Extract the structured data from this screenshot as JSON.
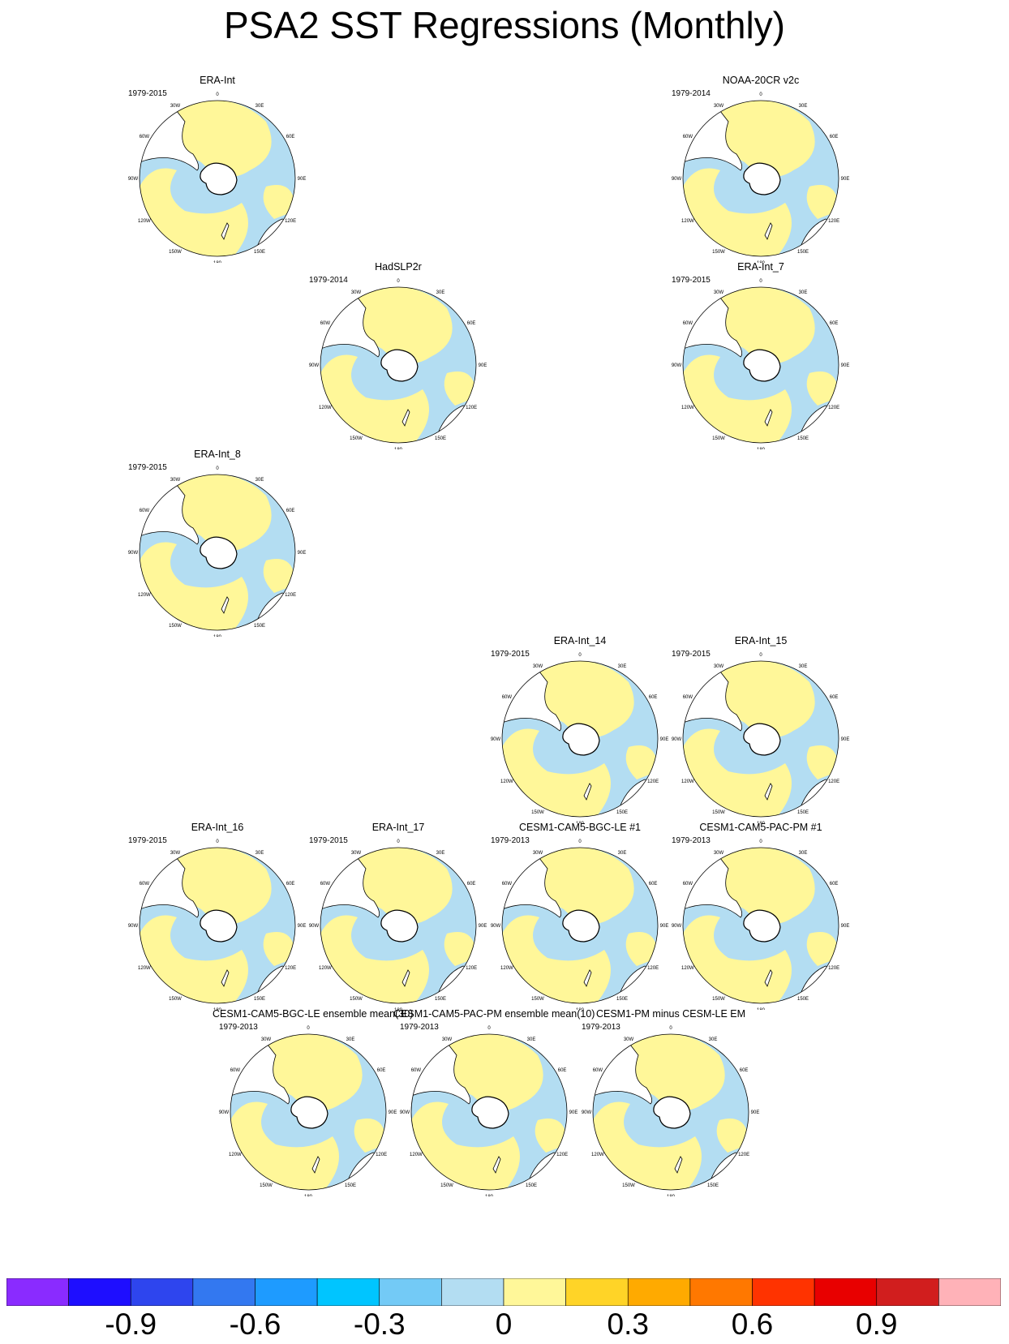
{
  "title": "PSA2 SST Regressions (Monthly)",
  "colors": {
    "ocean_positive": "#FFF799",
    "ocean_negative": "#B3DDF2",
    "land": "#ffffff",
    "coast": "#000000"
  },
  "map_labels": {
    "top": "0",
    "n30e": "30E",
    "n60e": "60E",
    "n90e": "90E",
    "n120e": "120E",
    "n150e": "150E",
    "bottom": "180",
    "n150w": "150W",
    "n120w": "120W",
    "n90w": "90W",
    "n60w": "60W",
    "n30w": "30W"
  },
  "panels": [
    {
      "id": "p1",
      "title": "ERA-Int",
      "period": "1979-2015"
    },
    {
      "id": "p2",
      "title": "NOAA-20CR v2c",
      "period": "1979-2014"
    },
    {
      "id": "p3",
      "title": "HadSLP2r",
      "period": "1979-2014"
    },
    {
      "id": "p4",
      "title": "ERA-Int_7",
      "period": "1979-2015"
    },
    {
      "id": "p5",
      "title": "ERA-Int_8",
      "period": "1979-2015"
    },
    {
      "id": "p6",
      "title": "ERA-Int_14",
      "period": "1979-2015"
    },
    {
      "id": "p7",
      "title": "ERA-Int_15",
      "period": "1979-2015"
    },
    {
      "id": "p8",
      "title": "ERA-Int_16",
      "period": "1979-2015"
    },
    {
      "id": "p9",
      "title": "ERA-Int_17",
      "period": "1979-2015"
    },
    {
      "id": "p10",
      "title": "CESM1-CAM5-BGC-LE #1",
      "period": "1979-2013"
    },
    {
      "id": "p11",
      "title": "CESM1-CAM5-PAC-PM #1",
      "period": "1979-2013"
    },
    {
      "id": "p12",
      "title": "CESM1-CAM5-BGC-LE ensemble mean(30)",
      "period": "1979-2013"
    },
    {
      "id": "p13",
      "title": "CESM1-CAM5-PAC-PM ensemble mean(10)",
      "period": "1979-2013"
    },
    {
      "id": "p14",
      "title": "CESM1-PM minus CESM-LE EM",
      "period": "1979-2013"
    }
  ],
  "colorbar": {
    "colors": [
      "#8A2BFF",
      "#1E0EFF",
      "#2E45EE",
      "#3378F0",
      "#1E9BFF",
      "#00C5FF",
      "#73CAF6",
      "#B3DDF2",
      "#FFF799",
      "#FFD427",
      "#FFAA00",
      "#FF7800",
      "#FF3300",
      "#E80000",
      "#D11E1E",
      "#FFB2B8"
    ],
    "tick_labels": [
      "-0.9",
      "-0.6",
      "-0.3",
      "0",
      "0.3",
      "0.6",
      "0.9"
    ],
    "tick_values": [
      -0.9,
      -0.6,
      -0.3,
      0,
      0.3,
      0.6,
      0.9
    ]
  }
}
